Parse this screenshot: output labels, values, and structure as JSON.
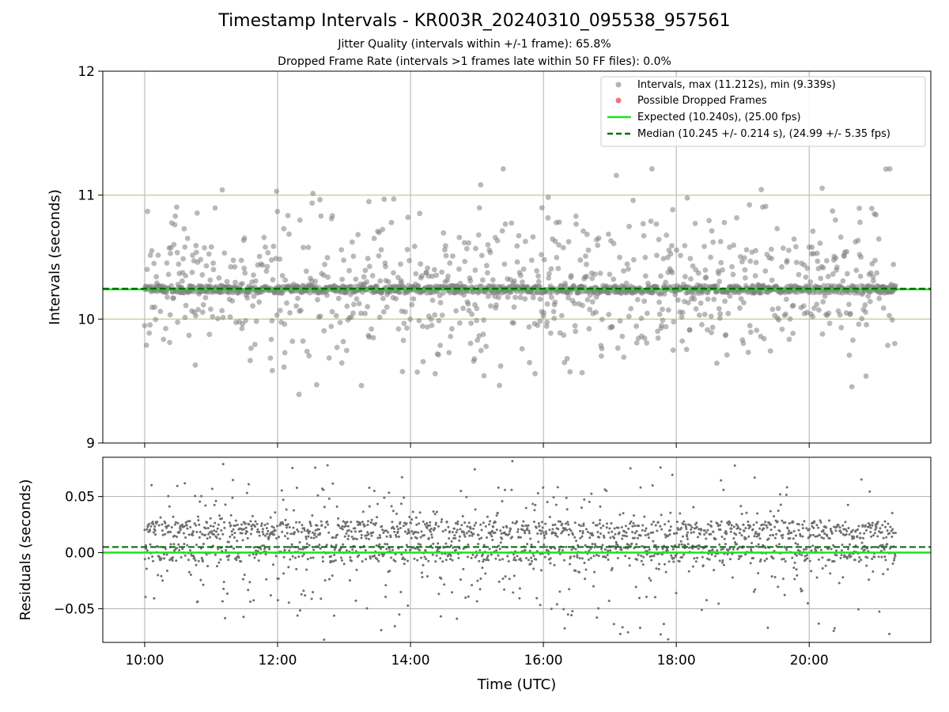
{
  "figure": {
    "title": "Timestamp Intervals - KR003R_20240310_095538_957561",
    "subtitle_1": "Jitter Quality (intervals within +/-1 frame): 65.8%",
    "subtitle_2": "Dropped Frame Rate (intervals >1 frames late within 50 FF files): 0.0%"
  },
  "chart_data": [
    {
      "type": "scatter",
      "name": "intervals",
      "ylabel": "Intervals (seconds)",
      "ylim": [
        9,
        12
      ],
      "yticks": [
        "9",
        "10",
        "11",
        "12"
      ],
      "xlim_hours": [
        9.37,
        21.83
      ],
      "x_range_hours": [
        10.0,
        21.3
      ],
      "grid": true,
      "hlines": [
        10,
        11
      ],
      "legend_position": "top-right",
      "legend": [
        {
          "key": "intervals",
          "label": "Intervals, max (11.212s), min (9.339s)",
          "color": "#808080"
        },
        {
          "key": "dropped",
          "label": "Possible Dropped Frames",
          "color": "#f0504e"
        },
        {
          "key": "expected",
          "label": "Expected (10.240s), (25.00 fps)",
          "color": "#1ee11e"
        },
        {
          "key": "median",
          "label": "Median (10.245 +/- 0.214 s), (24.99 +/- 5.35 fps)",
          "color": "#0a6e0a"
        }
      ],
      "expected": 10.24,
      "median": 10.245,
      "stats": {
        "max": 11.212,
        "min": 9.339
      },
      "series": [
        {
          "name": "Intervals, max (11.212s), min (9.339s)",
          "approx_points": 1800,
          "typical_value": 10.24,
          "spread": 0.45,
          "color": "#808080"
        },
        {
          "name": "Possible Dropped Frames",
          "approx_points": 0,
          "color": "#f0504e"
        }
      ]
    },
    {
      "type": "scatter",
      "name": "residuals",
      "ylabel": "Residuals (seconds)",
      "ylim": [
        -0.08,
        0.085
      ],
      "yticks": [
        {
          "v": 0.05,
          "label": "0.05"
        },
        {
          "v": 0.0,
          "label": "0.00"
        },
        {
          "v": -0.05,
          "label": "−0.05"
        }
      ],
      "xlabel": "Time (UTC)",
      "xticks": [
        {
          "h": 10,
          "label": "10:00"
        },
        {
          "h": 12,
          "label": "12:00"
        },
        {
          "h": 14,
          "label": "14:00"
        },
        {
          "h": 16,
          "label": "16:00"
        },
        {
          "h": 18,
          "label": "18:00"
        },
        {
          "h": 20,
          "label": "20:00"
        }
      ],
      "grid": true,
      "zero_line": 0.0,
      "median_offset": 0.005,
      "series": [
        {
          "name": "residuals",
          "approx_points": 2000,
          "typical_value": 0.01,
          "spread": 0.03,
          "color": "#6e6e6e"
        }
      ]
    }
  ]
}
